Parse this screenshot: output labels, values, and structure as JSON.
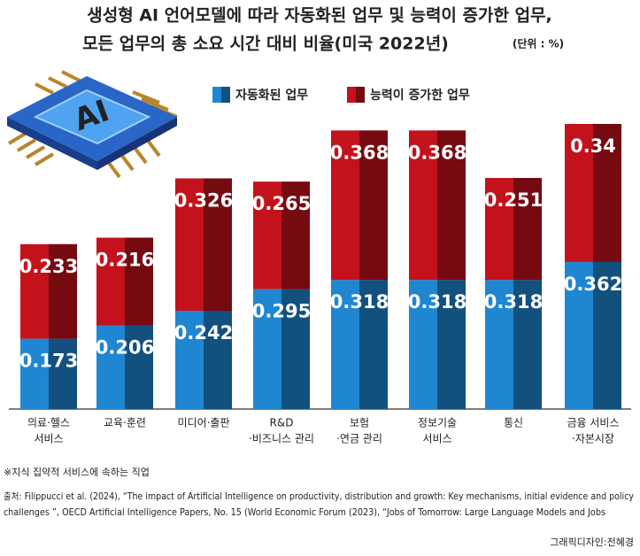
{
  "chart_data": {
    "type": "stacked_bar",
    "title": [
      "생성형 AI 언어모델에 따라 자동화된 업무 및 능력이 증가한 업무,",
      "모든 업무의 총 소요 시간 대비 비율(미국 2022년)"
    ],
    "unit": "(단위 : %)",
    "categories": [
      [
        "의료·헬스",
        "서비스"
      ],
      [
        "교육·훈련"
      ],
      [
        "미디어·출판"
      ],
      [
        "R&D",
        "·비즈니스 관리"
      ],
      [
        "보험",
        "·연금 관리"
      ],
      [
        "정보기술",
        "서비스"
      ],
      [
        "통신"
      ],
      [
        "금융 서비스",
        "·자본시장"
      ]
    ],
    "series": [
      {
        "name": "자동화된 업무",
        "color": "#1f86d2",
        "values": [
          0.173,
          0.206,
          0.242,
          0.295,
          0.318,
          0.318,
          0.318,
          0.362
        ]
      },
      {
        "name": "능력이 증가한 업무",
        "color": "#c3121c",
        "values": [
          0.233,
          0.216,
          0.326,
          0.265,
          0.368,
          0.368,
          0.251,
          0.34
        ]
      }
    ],
    "ylim": [
      0,
      0.75
    ],
    "note": "※지식 집약적 서비스에 속하는 직업",
    "source": [
      "출처: Filippucci et al. (2024), “The impact of Artificial Intelligence on productivity, distribution and growth: Key mechanisms, initial evidence and policy",
      "challenges ”, OECD Artificial Intelligence Papers, No. 15 (World Economic Forum (2023), “Jobs of Tomorrow: Large Language Models and Jobs"
    ],
    "credit": "그래픽디자인:전혜경"
  }
}
